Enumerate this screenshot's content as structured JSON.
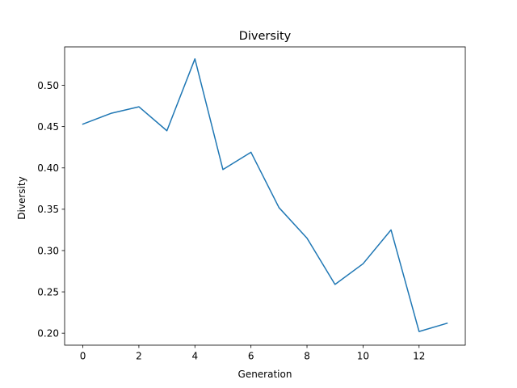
{
  "chart_data": {
    "type": "line",
    "title": "Diversity",
    "xlabel": "Generation",
    "ylabel": "Diversity",
    "xlim": [
      -0.65,
      13.65
    ],
    "ylim": [
      0.1855,
      0.5465
    ],
    "xticks": [
      0,
      2,
      4,
      6,
      8,
      10,
      12
    ],
    "xtick_labels": [
      "0",
      "2",
      "4",
      "6",
      "8",
      "10",
      "12"
    ],
    "yticks": [
      0.2,
      0.25,
      0.3,
      0.35,
      0.4,
      0.45,
      0.5
    ],
    "ytick_labels": [
      "0.20",
      "0.25",
      "0.30",
      "0.35",
      "0.40",
      "0.45",
      "0.50"
    ],
    "grid": false,
    "series": [
      {
        "color": "#1f77b4",
        "x": [
          0,
          1,
          2,
          3,
          4,
          5,
          6,
          7,
          8,
          9,
          10,
          11,
          12,
          13
        ],
        "y": [
          0.453,
          0.466,
          0.474,
          0.445,
          0.532,
          0.398,
          0.419,
          0.352,
          0.315,
          0.259,
          0.284,
          0.325,
          0.202,
          0.212
        ]
      }
    ]
  }
}
